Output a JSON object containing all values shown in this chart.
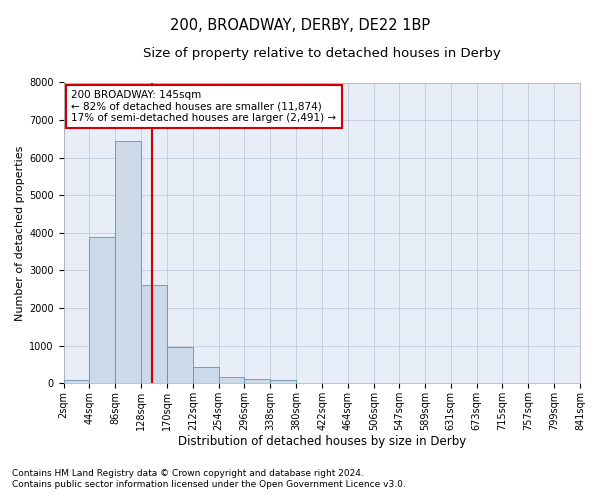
{
  "title": "200, BROADWAY, DERBY, DE22 1BP",
  "subtitle": "Size of property relative to detached houses in Derby",
  "xlabel": "Distribution of detached houses by size in Derby",
  "ylabel": "Number of detached properties",
  "annotation_line1": "200 BROADWAY: 145sqm",
  "annotation_line2": "← 82% of detached houses are smaller (11,874)",
  "annotation_line3": "17% of semi-detached houses are larger (2,491) →",
  "footnote1": "Contains HM Land Registry data © Crown copyright and database right 2024.",
  "footnote2": "Contains public sector information licensed under the Open Government Licence v3.0.",
  "bar_edges": [
    2,
    44,
    86,
    128,
    170,
    212,
    254,
    296,
    338,
    380,
    422,
    464,
    506,
    547,
    589,
    631,
    673,
    715,
    757,
    799,
    841
  ],
  "bar_heights": [
    75,
    3900,
    6450,
    2600,
    950,
    430,
    175,
    120,
    80,
    10,
    0,
    0,
    0,
    0,
    0,
    0,
    0,
    0,
    0,
    0
  ],
  "bar_color": "#ccd9e8",
  "bar_edgecolor": "#6a8faf",
  "vline_color": "#cc0000",
  "vline_x": 145,
  "ylim": [
    0,
    8000
  ],
  "background_color": "#e8eef8",
  "grid_color": "#b8c4d4",
  "annotation_box_edgecolor": "#cc0000",
  "annotation_box_facecolor": "#ffffff",
  "annotation_fontsize": 7.5,
  "title_fontsize": 10.5,
  "subtitle_fontsize": 9.5,
  "xlabel_fontsize": 8.5,
  "ylabel_fontsize": 8,
  "tick_fontsize": 7,
  "footnote_fontsize": 6.5
}
